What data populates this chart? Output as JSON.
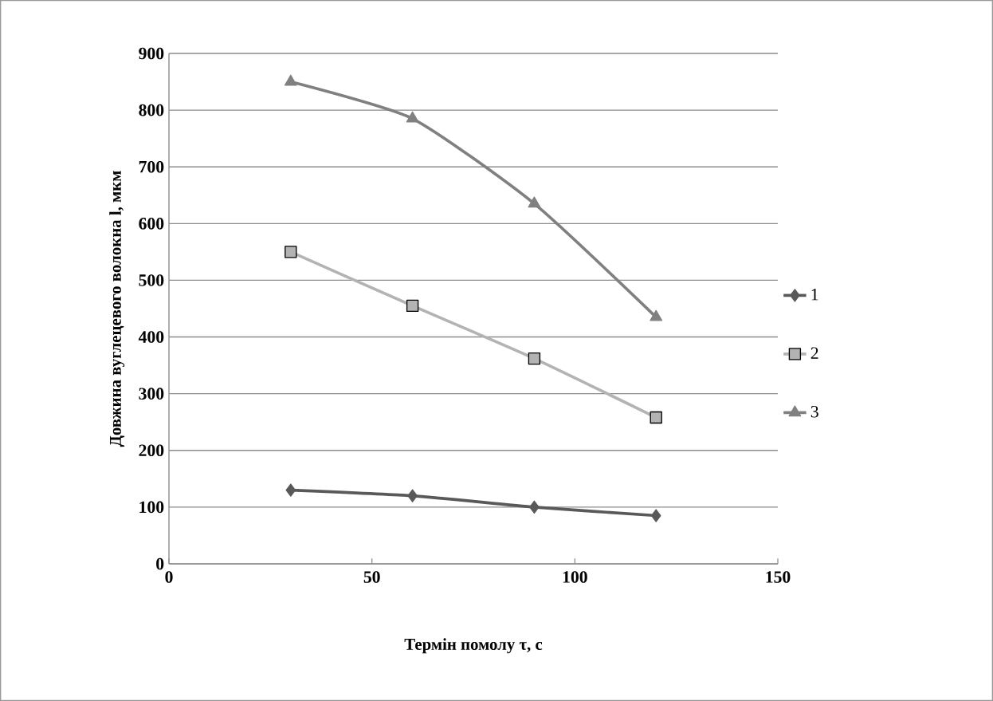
{
  "chart_data": {
    "type": "line",
    "xlabel": "Термін помолу τ, с",
    "ylabel": "Довжина вуглецевого волокна l, мкм",
    "x": [
      30,
      60,
      90,
      120
    ],
    "series": [
      {
        "name": "1",
        "color": "#595959",
        "marker": "diamond",
        "values": [
          130,
          120,
          100,
          85
        ]
      },
      {
        "name": "2",
        "color": "#b3b3b3",
        "marker": "square",
        "values": [
          550,
          455,
          362,
          258
        ]
      },
      {
        "name": "3",
        "color": "#808080",
        "marker": "triangle",
        "values": [
          850,
          785,
          635,
          435
        ]
      }
    ],
    "xlim": [
      0,
      150
    ],
    "ylim": [
      0,
      900
    ],
    "xticks": [
      0,
      50,
      100,
      150
    ],
    "yticks": [
      0,
      100,
      200,
      300,
      400,
      500,
      600,
      700,
      800,
      900
    ],
    "grid": "y",
    "legend": "right"
  }
}
